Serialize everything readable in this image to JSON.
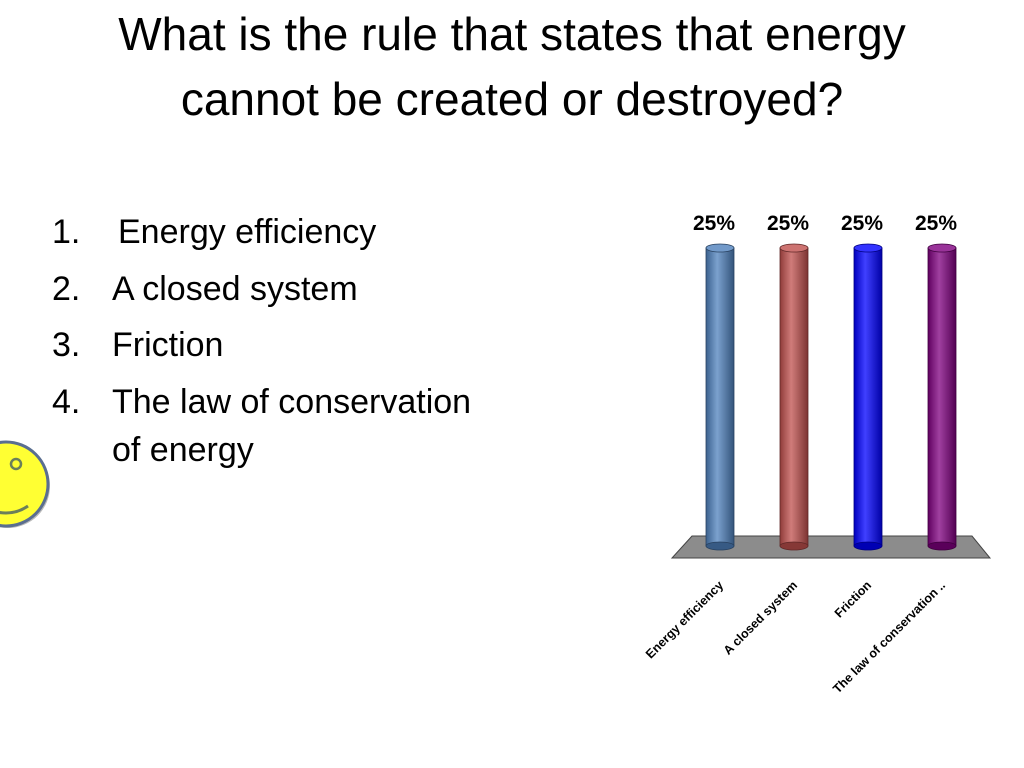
{
  "slide": {
    "title": "What is the rule that states that energy cannot be created or destroyed?"
  },
  "answers": [
    {
      "number": "1.",
      "text": "Energy efficiency"
    },
    {
      "number": "2.",
      "text": "A closed system"
    },
    {
      "number": "3.",
      "text": "Friction"
    },
    {
      "number": "4.",
      "text": "The law of conservation of energy"
    }
  ],
  "correct_indicator": {
    "icon": "smiley-face-icon",
    "answer_number": "4."
  },
  "chart_data": {
    "type": "bar",
    "categories": [
      "Energy efficiency",
      "A closed system",
      "Friction",
      "The law of conservation .."
    ],
    "values": [
      25,
      25,
      25,
      25
    ],
    "value_labels": [
      "25%",
      "25%",
      "25%",
      "25%"
    ],
    "unit": "%",
    "ylim": [
      0,
      25
    ],
    "colors": [
      "#4f81bd",
      "#c0504d",
      "#0000ff",
      "#800080"
    ],
    "floor_color": "#8c8c8c",
    "grid": false,
    "legend": "none"
  }
}
